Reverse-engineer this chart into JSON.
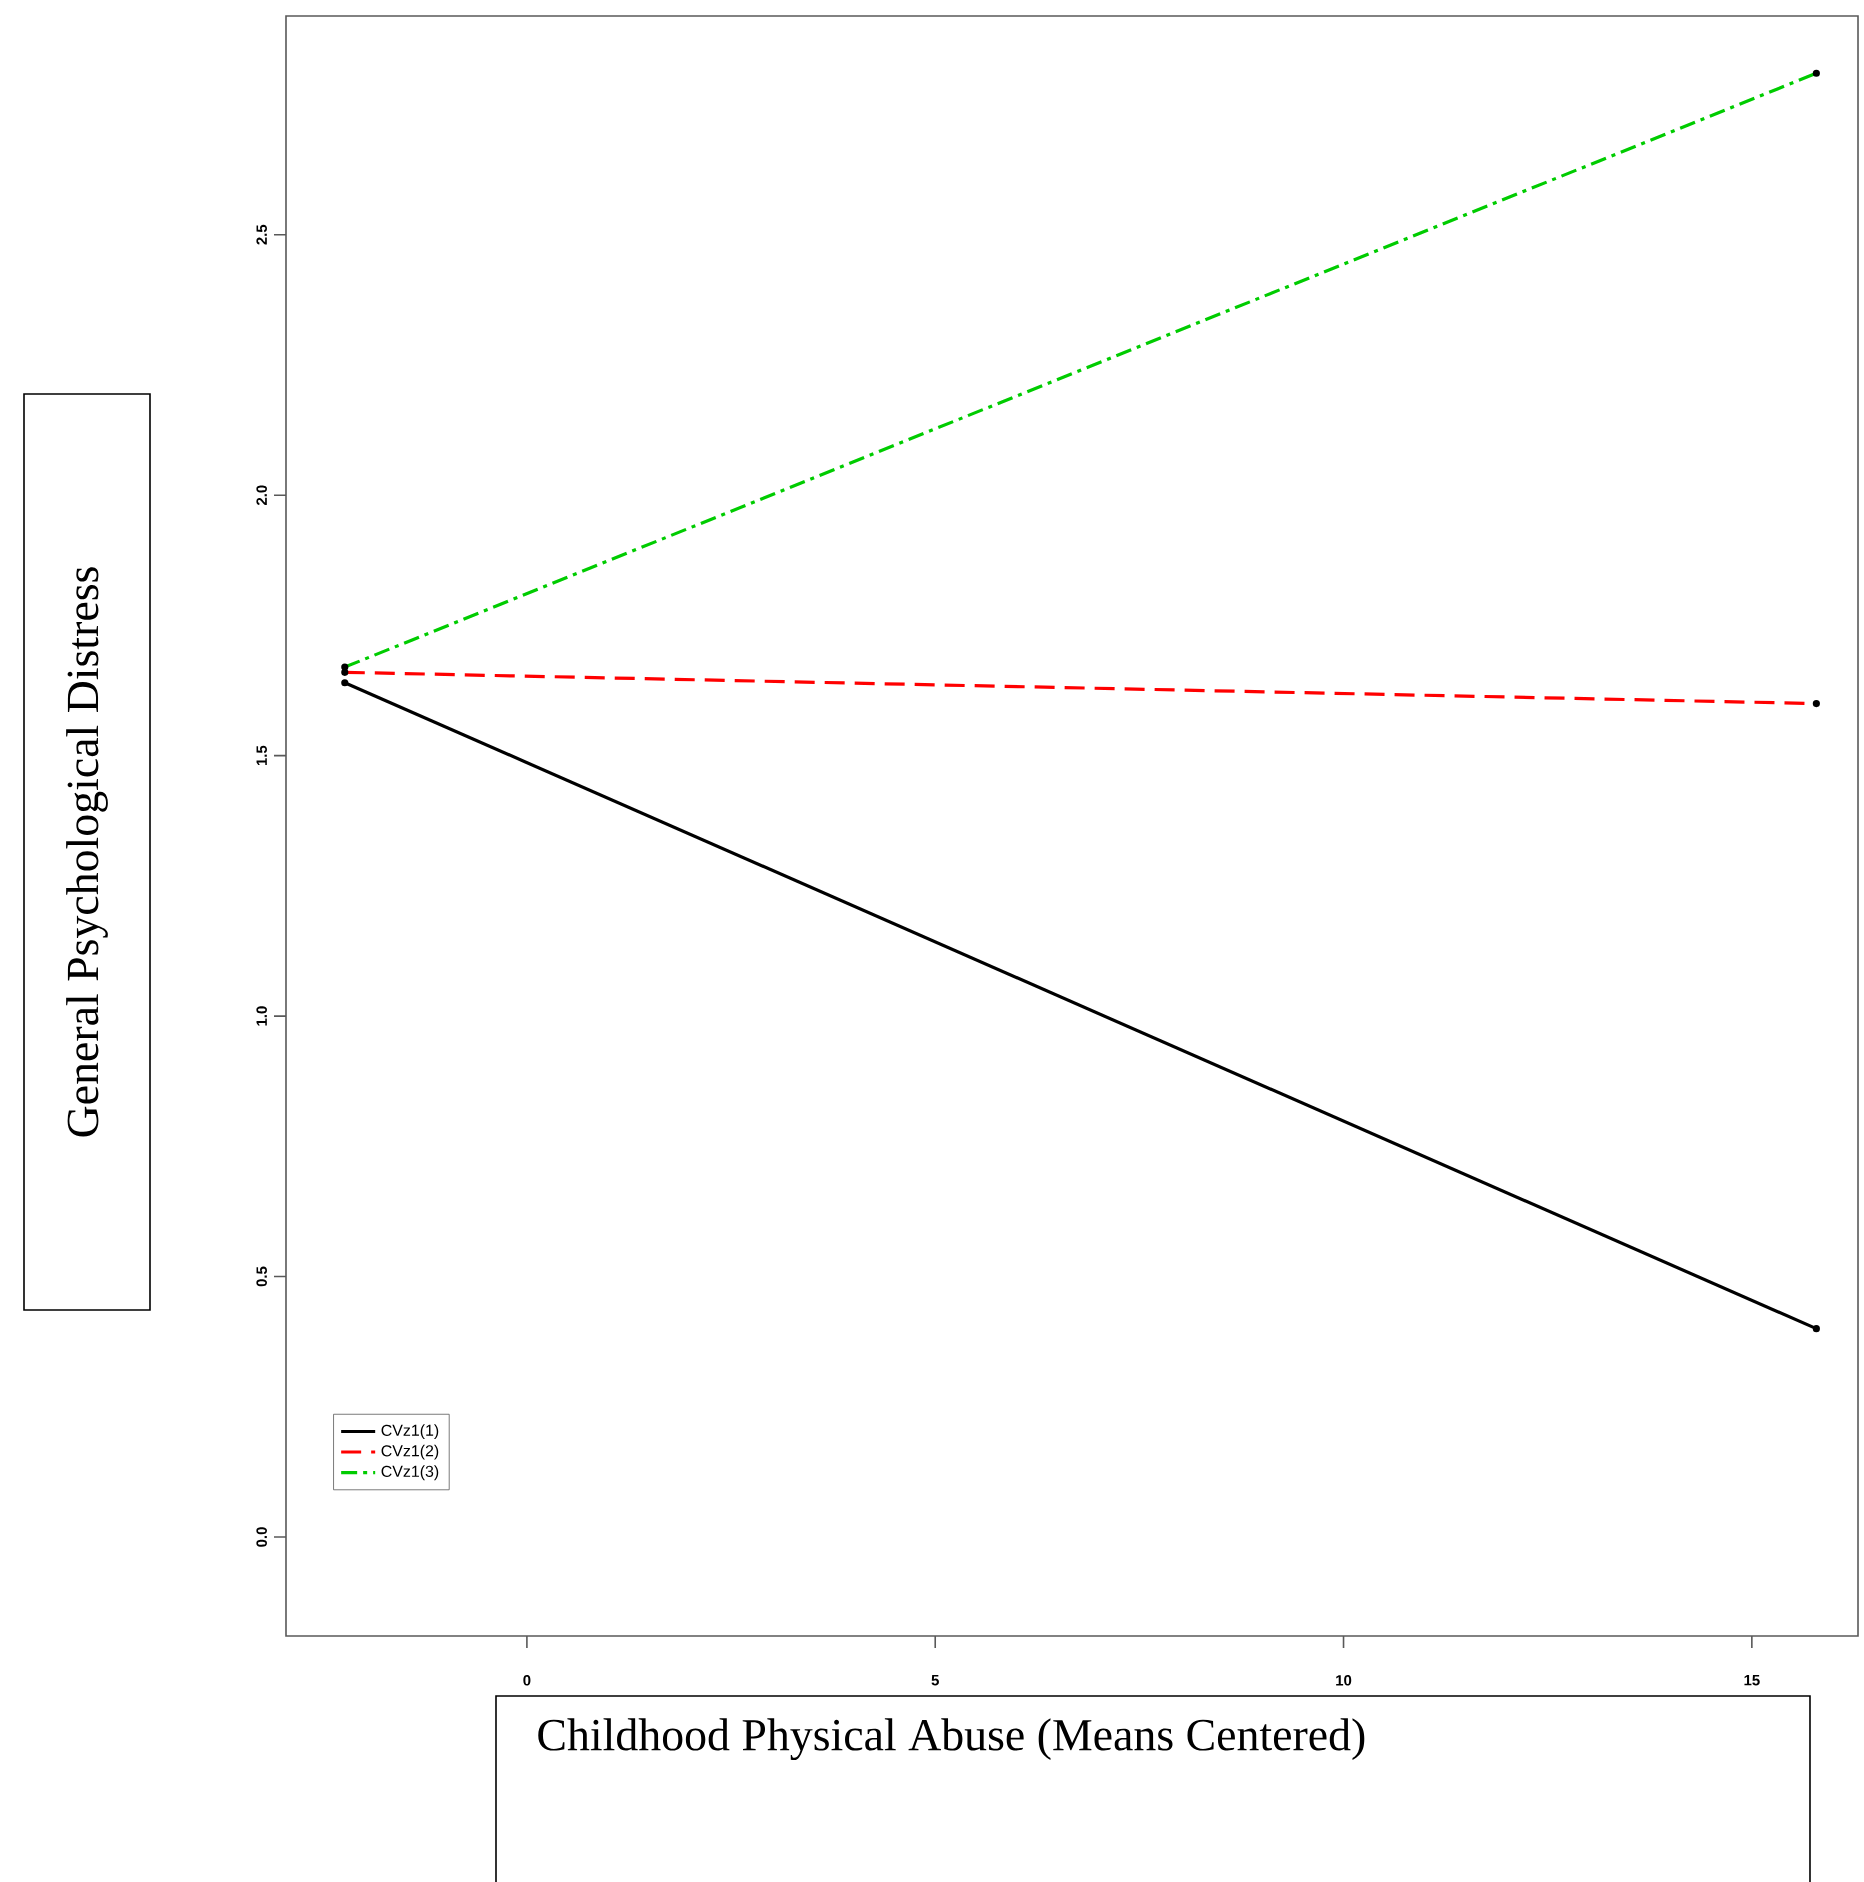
{
  "chart_data": {
    "type": "line",
    "xlabel": "Childhood Physical Abuse (Means Centered)",
    "ylabel": "General Psychological Distress",
    "x": [
      -2.23,
      15.79
    ],
    "series": [
      {
        "name": "CVz1(1)",
        "color": "#000000",
        "line_style": "solid",
        "values": [
          1.64,
          0.4
        ]
      },
      {
        "name": "CVz1(2)",
        "color": "#ff0000",
        "line_style": "dashed",
        "values": [
          1.66,
          1.6
        ]
      },
      {
        "name": "CVz1(3)",
        "color": "#00cc00",
        "line_style": "dashdot",
        "values": [
          1.67,
          2.81
        ]
      }
    ],
    "xlim": [
      -2.95,
      16.3
    ],
    "ylim": [
      -0.19,
      2.92
    ],
    "xticks": [
      0,
      5,
      10,
      15
    ],
    "yticks": [
      {
        "value": 0,
        "label": "0.0"
      },
      0.5,
      {
        "value": 1,
        "label": "1.0"
      },
      1.5,
      {
        "value": 2,
        "label": "2.0"
      },
      2.5
    ],
    "marker": "circle",
    "grid": false,
    "legend": "bottom left"
  }
}
